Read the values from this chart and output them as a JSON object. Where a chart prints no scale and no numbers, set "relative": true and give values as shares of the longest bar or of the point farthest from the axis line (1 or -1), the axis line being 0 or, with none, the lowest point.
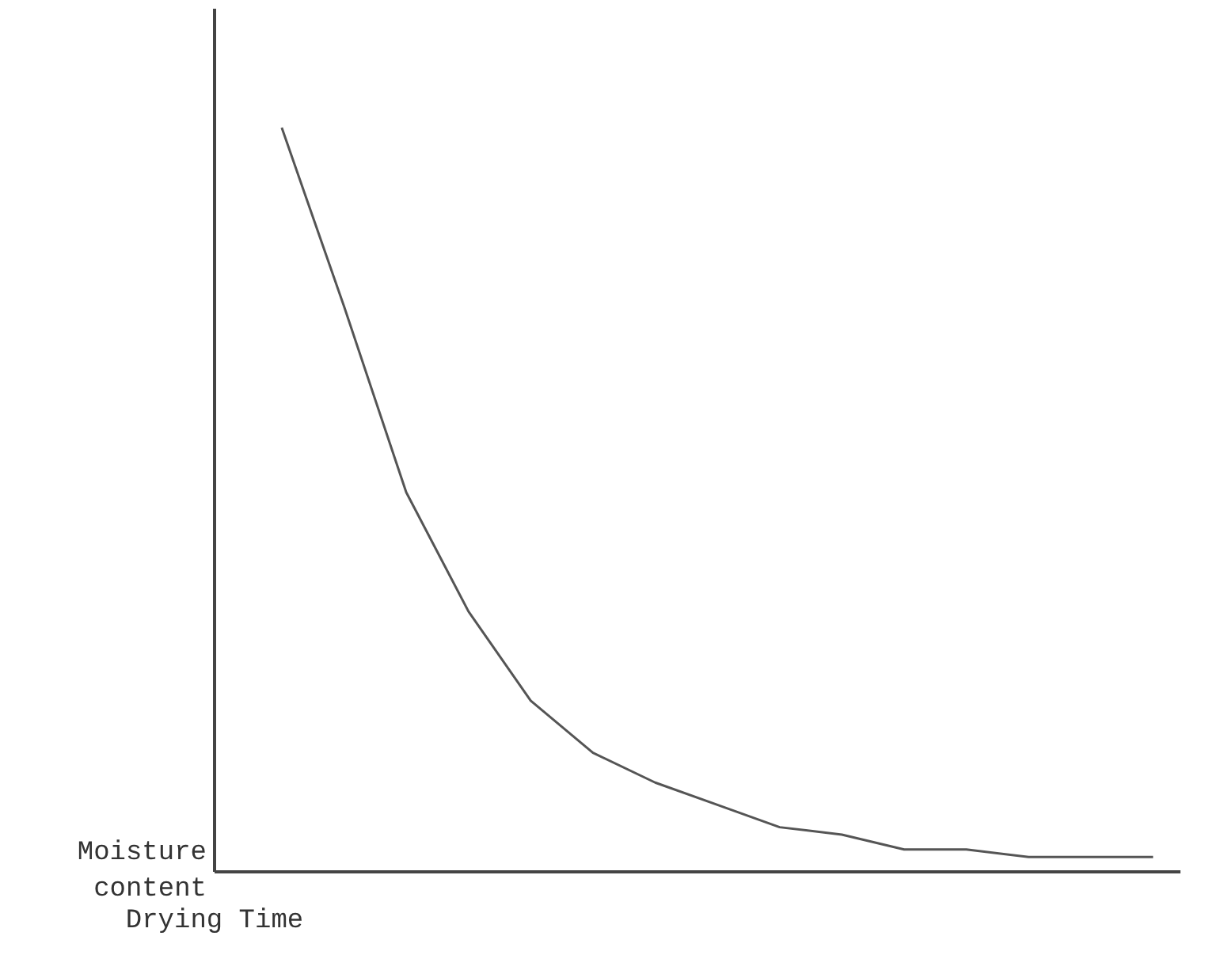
{
  "chart_data": {
    "type": "line",
    "relative": true,
    "xlabel": "Drying Time",
    "ylabel": "Moisture content",
    "categories": [
      null,
      null,
      null,
      null,
      null,
      null,
      null,
      null,
      null,
      null,
      null,
      null,
      null,
      null,
      null
    ],
    "series": [
      {
        "color": "#555555",
        "values": [
          1,
          0.76,
          0.51,
          0.35,
          0.23,
          0.16,
          0.12,
          0.09,
          0.06,
          0.05,
          0.03,
          0.03,
          0.02,
          0.02,
          0.02
        ]
      }
    ],
    "line_style": "solid"
  }
}
